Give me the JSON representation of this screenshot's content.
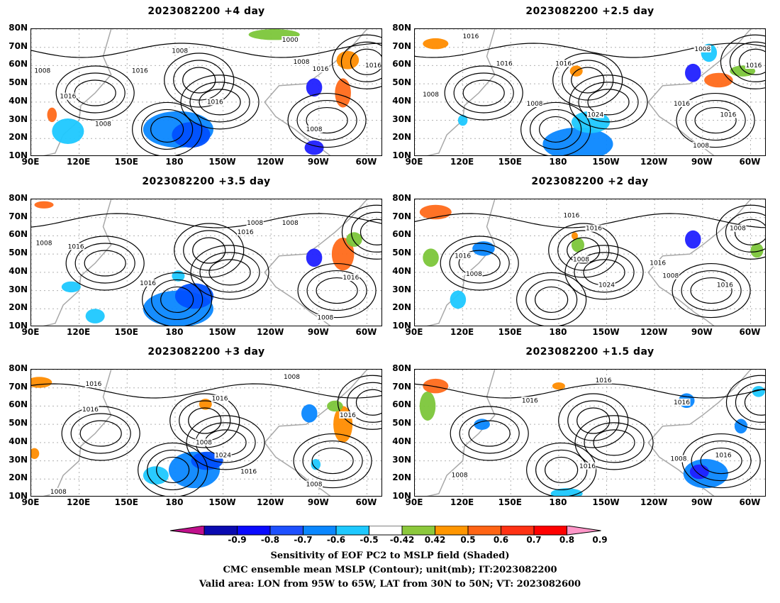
{
  "panels": [
    {
      "title": "2023082200  +4  day",
      "blobs": [
        {
          "lon": -178,
          "lat": 25,
          "rx": 22,
          "ry": 10,
          "c": "#0a87ff"
        },
        {
          "lon": -170,
          "lat": 22,
          "rx": 12,
          "ry": 7,
          "c": "#0050ff"
        },
        {
          "lon": -93,
          "lat": 48,
          "rx": 5,
          "ry": 5,
          "c": "#2020ff"
        },
        {
          "lon": -93,
          "lat": 15,
          "rx": 6,
          "ry": 4,
          "c": "#2020ff"
        },
        {
          "lon": -75,
          "lat": 45,
          "rx": 5,
          "ry": 8,
          "c": "#ff6a1a"
        },
        {
          "lon": -72,
          "lat": 63,
          "rx": 7,
          "ry": 5,
          "c": "#ff8c00"
        },
        {
          "lon": -118,
          "lat": 77,
          "rx": 16,
          "ry": 3,
          "c": "#7cc63a"
        },
        {
          "lon": 103,
          "lat": 33,
          "rx": 3,
          "ry": 4,
          "c": "#ff6a1a"
        },
        {
          "lon": 113,
          "lat": 24,
          "rx": 10,
          "ry": 7,
          "c": "#1ec8ff"
        }
      ],
      "labels": [
        {
          "lon": -177,
          "lat": 67,
          "t": "1008"
        },
        {
          "lon": -108,
          "lat": 73,
          "t": "1000"
        },
        {
          "lon": -101,
          "lat": 61,
          "t": "1008"
        },
        {
          "lon": -89,
          "lat": 57,
          "t": "1016"
        },
        {
          "lon": -56,
          "lat": 59,
          "t": "1016"
        },
        {
          "lon": -155,
          "lat": 39,
          "t": "1016"
        },
        {
          "lon": -93,
          "lat": 24,
          "t": "1008"
        },
        {
          "lon": 135,
          "lat": 27,
          "t": "1008"
        },
        {
          "lon": 113,
          "lat": 42,
          "t": "1016"
        },
        {
          "lon": 97,
          "lat": 56,
          "t": "1008"
        },
        {
          "lon": 158,
          "lat": 56,
          "t": "1016"
        }
      ]
    },
    {
      "title": "2023082200  +2.5  day",
      "blobs": [
        {
          "lon": -168,
          "lat": 17,
          "rx": 22,
          "ry": 9,
          "c": "#0a87ff"
        },
        {
          "lon": -160,
          "lat": 29,
          "rx": 12,
          "ry": 6,
          "c": "#1ec8ff"
        },
        {
          "lon": -96,
          "lat": 56,
          "rx": 5,
          "ry": 5,
          "c": "#2020ff"
        },
        {
          "lon": -80,
          "lat": 52,
          "rx": 9,
          "ry": 4,
          "c": "#ff6a1a"
        },
        {
          "lon": -65,
          "lat": 57,
          "rx": 8,
          "ry": 3,
          "c": "#7cc63a"
        },
        {
          "lon": -169,
          "lat": 57,
          "rx": 4,
          "ry": 3,
          "c": "#ff8c00"
        },
        {
          "lon": 103,
          "lat": 72,
          "rx": 8,
          "ry": 3,
          "c": "#ff8c00"
        },
        {
          "lon": -86,
          "lat": 67,
          "rx": 5,
          "ry": 5,
          "c": "#1ec8ff"
        },
        {
          "lon": 120,
          "lat": 30,
          "rx": 3,
          "ry": 3,
          "c": "#1ec8ff"
        }
      ],
      "labels": [
        {
          "lon": 125,
          "lat": 75,
          "t": "1016"
        },
        {
          "lon": -90,
          "lat": 68,
          "t": "1008"
        },
        {
          "lon": -177,
          "lat": 60,
          "t": "1016"
        },
        {
          "lon": -58,
          "lat": 59,
          "t": "1016"
        },
        {
          "lon": 146,
          "lat": 60,
          "t": "1016"
        },
        {
          "lon": 100,
          "lat": 43,
          "t": "1008"
        },
        {
          "lon": 165,
          "lat": 38,
          "t": "1008"
        },
        {
          "lon": -157,
          "lat": 32,
          "t": "1024"
        },
        {
          "lon": -103,
          "lat": 38,
          "t": "1016"
        },
        {
          "lon": -74,
          "lat": 32,
          "t": "1016"
        },
        {
          "lon": -91,
          "lat": 15,
          "t": "1008"
        }
      ]
    },
    {
      "title": "2023082200  +3.5  day",
      "blobs": [
        {
          "lon": -178,
          "lat": 20,
          "rx": 22,
          "ry": 10,
          "c": "#0a87ff"
        },
        {
          "lon": -168,
          "lat": 27,
          "rx": 12,
          "ry": 7,
          "c": "#0050ff"
        },
        {
          "lon": -93,
          "lat": 48,
          "rx": 5,
          "ry": 5,
          "c": "#2020ff"
        },
        {
          "lon": -75,
          "lat": 50,
          "rx": 7,
          "ry": 9,
          "c": "#ff6a1a"
        },
        {
          "lon": -68,
          "lat": 58,
          "rx": 5,
          "ry": 4,
          "c": "#7cc63a"
        },
        {
          "lon": -178,
          "lat": 38,
          "rx": 4,
          "ry": 3,
          "c": "#1ec8ff"
        },
        {
          "lon": 115,
          "lat": 32,
          "rx": 6,
          "ry": 3,
          "c": "#1ec8ff"
        },
        {
          "lon": 98,
          "lat": 77,
          "rx": 6,
          "ry": 2,
          "c": "#ff6a1a"
        },
        {
          "lon": 130,
          "lat": 16,
          "rx": 6,
          "ry": 4,
          "c": "#1ec8ff"
        }
      ],
      "labels": [
        {
          "lon": -130,
          "lat": 66,
          "t": "1008"
        },
        {
          "lon": -108,
          "lat": 66,
          "t": "1008"
        },
        {
          "lon": -136,
          "lat": 61,
          "t": "1016"
        },
        {
          "lon": 98,
          "lat": 55,
          "t": "1008"
        },
        {
          "lon": 118,
          "lat": 53,
          "t": "1016"
        },
        {
          "lon": 163,
          "lat": 33,
          "t": "1016"
        },
        {
          "lon": -70,
          "lat": 36,
          "t": "1016"
        },
        {
          "lon": -86,
          "lat": 14,
          "t": "1008"
        }
      ]
    },
    {
      "title": "2023082200  +2  day",
      "blobs": [
        {
          "lon": -96,
          "lat": 58,
          "rx": 5,
          "ry": 5,
          "c": "#2020ff"
        },
        {
          "lon": 133,
          "lat": 53,
          "rx": 7,
          "ry": 4,
          "c": "#0a87ff"
        },
        {
          "lon": 103,
          "lat": 73,
          "rx": 10,
          "ry": 4,
          "c": "#ff6a1a"
        },
        {
          "lon": -168,
          "lat": 55,
          "rx": 4,
          "ry": 4,
          "c": "#7cc63a"
        },
        {
          "lon": -56,
          "lat": 52,
          "rx": 4,
          "ry": 4,
          "c": "#7cc63a"
        },
        {
          "lon": 100,
          "lat": 48,
          "rx": 5,
          "ry": 5,
          "c": "#7cc63a"
        },
        {
          "lon": 117,
          "lat": 25,
          "rx": 5,
          "ry": 5,
          "c": "#1ec8ff"
        },
        {
          "lon": -170,
          "lat": 60,
          "rx": 2,
          "ry": 2,
          "c": "#ff8c00"
        }
      ],
      "labels": [
        {
          "lon": -172,
          "lat": 70,
          "t": "1016"
        },
        {
          "lon": -158,
          "lat": 63,
          "t": "1016"
        },
        {
          "lon": -166,
          "lat": 46,
          "t": "1008"
        },
        {
          "lon": -68,
          "lat": 63,
          "t": "1008"
        },
        {
          "lon": 120,
          "lat": 48,
          "t": "1016"
        },
        {
          "lon": 127,
          "lat": 38,
          "t": "1008"
        },
        {
          "lon": -150,
          "lat": 32,
          "t": "1024"
        },
        {
          "lon": -118,
          "lat": 44,
          "t": "1016"
        },
        {
          "lon": -110,
          "lat": 37,
          "t": "1008"
        },
        {
          "lon": -76,
          "lat": 32,
          "t": "1016"
        }
      ]
    },
    {
      "title": "2023082200  +3  day",
      "blobs": [
        {
          "lon": -168,
          "lat": 25,
          "rx": 16,
          "ry": 10,
          "c": "#0a87ff"
        },
        {
          "lon": -160,
          "lat": 30,
          "rx": 10,
          "ry": 5,
          "c": "#0050ff"
        },
        {
          "lon": -96,
          "lat": 56,
          "rx": 5,
          "ry": 5,
          "c": "#0a87ff"
        },
        {
          "lon": -75,
          "lat": 50,
          "rx": 6,
          "ry": 10,
          "c": "#ff8c00"
        },
        {
          "lon": -80,
          "lat": 60,
          "rx": 5,
          "ry": 3,
          "c": "#7cc63a"
        },
        {
          "lon": -161,
          "lat": 61,
          "rx": 4,
          "ry": 3,
          "c": "#ff8c00"
        },
        {
          "lon": 95,
          "lat": 73,
          "rx": 8,
          "ry": 3,
          "c": "#ff8c00"
        },
        {
          "lon": 92,
          "lat": 34,
          "rx": 3,
          "ry": 3,
          "c": "#ff8c00"
        },
        {
          "lon": 168,
          "lat": 22,
          "rx": 8,
          "ry": 5,
          "c": "#1ec8ff"
        },
        {
          "lon": -92,
          "lat": 28,
          "rx": 3,
          "ry": 3,
          "c": "#1ec8ff"
        }
      ],
      "labels": [
        {
          "lon": -107,
          "lat": 75,
          "t": "1008"
        },
        {
          "lon": 129,
          "lat": 71,
          "t": "1016"
        },
        {
          "lon": -152,
          "lat": 63,
          "t": "1016"
        },
        {
          "lon": -72,
          "lat": 54,
          "t": "1016"
        },
        {
          "lon": 127,
          "lat": 57,
          "t": "1016"
        },
        {
          "lon": -162,
          "lat": 39,
          "t": "1008"
        },
        {
          "lon": -150,
          "lat": 32,
          "t": "1024"
        },
        {
          "lon": -134,
          "lat": 23,
          "t": "1016"
        },
        {
          "lon": -93,
          "lat": 16,
          "t": "1008"
        },
        {
          "lon": 107,
          "lat": 12,
          "t": "1008"
        }
      ]
    },
    {
      "title": "2023082200  +1.5  day",
      "blobs": [
        {
          "lon": -88,
          "lat": 23,
          "rx": 14,
          "ry": 8,
          "c": "#0a87ff"
        },
        {
          "lon": -92,
          "lat": 24,
          "rx": 6,
          "ry": 4,
          "c": "#2020ff"
        },
        {
          "lon": -100,
          "lat": 63,
          "rx": 5,
          "ry": 4,
          "c": "#0a87ff"
        },
        {
          "lon": -66,
          "lat": 49,
          "rx": 4,
          "ry": 4,
          "c": "#0a87ff"
        },
        {
          "lon": -55,
          "lat": 68,
          "rx": 4,
          "ry": 3,
          "c": "#1ec8ff"
        },
        {
          "lon": 98,
          "lat": 60,
          "rx": 5,
          "ry": 8,
          "c": "#7cc63a"
        },
        {
          "lon": 103,
          "lat": 71,
          "rx": 8,
          "ry": 4,
          "c": "#ff6a1a"
        },
        {
          "lon": -175,
          "lat": 12,
          "rx": 10,
          "ry": 3,
          "c": "#1ec8ff"
        },
        {
          "lon": 132,
          "lat": 50,
          "rx": 5,
          "ry": 3,
          "c": "#0a87ff"
        },
        {
          "lon": 180,
          "lat": 71,
          "rx": 4,
          "ry": 2,
          "c": "#ff8c00"
        }
      ],
      "labels": [
        {
          "lon": -152,
          "lat": 73,
          "t": "1016"
        },
        {
          "lon": 162,
          "lat": 62,
          "t": "1016"
        },
        {
          "lon": -103,
          "lat": 61,
          "t": "1016"
        },
        {
          "lon": -77,
          "lat": 32,
          "t": "1016"
        },
        {
          "lon": -105,
          "lat": 30,
          "t": "1008"
        },
        {
          "lon": -162,
          "lat": 26,
          "t": "1016"
        },
        {
          "lon": 118,
          "lat": 21,
          "t": "1008"
        }
      ]
    }
  ],
  "axes": {
    "lon_ticks": [
      "90E",
      "120E",
      "150E",
      "180",
      "150W",
      "120W",
      "90W",
      "60W"
    ],
    "lon_values": [
      90,
      120,
      150,
      180,
      210,
      240,
      270,
      300
    ],
    "lat_ticks": [
      "80N",
      "70N",
      "60N",
      "50N",
      "40N",
      "30N",
      "20N",
      "10N"
    ],
    "lat_values": [
      80,
      70,
      60,
      50,
      40,
      30,
      20,
      10
    ],
    "lon_range": [
      90,
      310
    ],
    "lat_range": [
      10,
      80
    ]
  },
  "colorbar": {
    "ticks": [
      "-0.9",
      "-0.8",
      "-0.7",
      "-0.6",
      "-0.5",
      "-0.42",
      "0.42",
      "0.5",
      "0.6",
      "0.7",
      "0.8",
      "0.9"
    ],
    "colors": [
      "#c0108c",
      "#0a0ab0",
      "#0a0aff",
      "#1e50ff",
      "#0a87ff",
      "#1ec8ff",
      "#ffffff",
      "#8cc83c",
      "#ff9600",
      "#ff6414",
      "#ff3214",
      "#ff0000",
      "#ff96c8"
    ]
  },
  "caption": {
    "line1": "Sensitivity of EOF PC2 to MSLP field (Shaded)",
    "line2": "CMC ensemble mean MSLP (Contour); unit(mb); IT:2023082200",
    "line3": "Valid area: LON from 95W to 65W, LAT from 30N to 50N; VT: 2023082600"
  }
}
